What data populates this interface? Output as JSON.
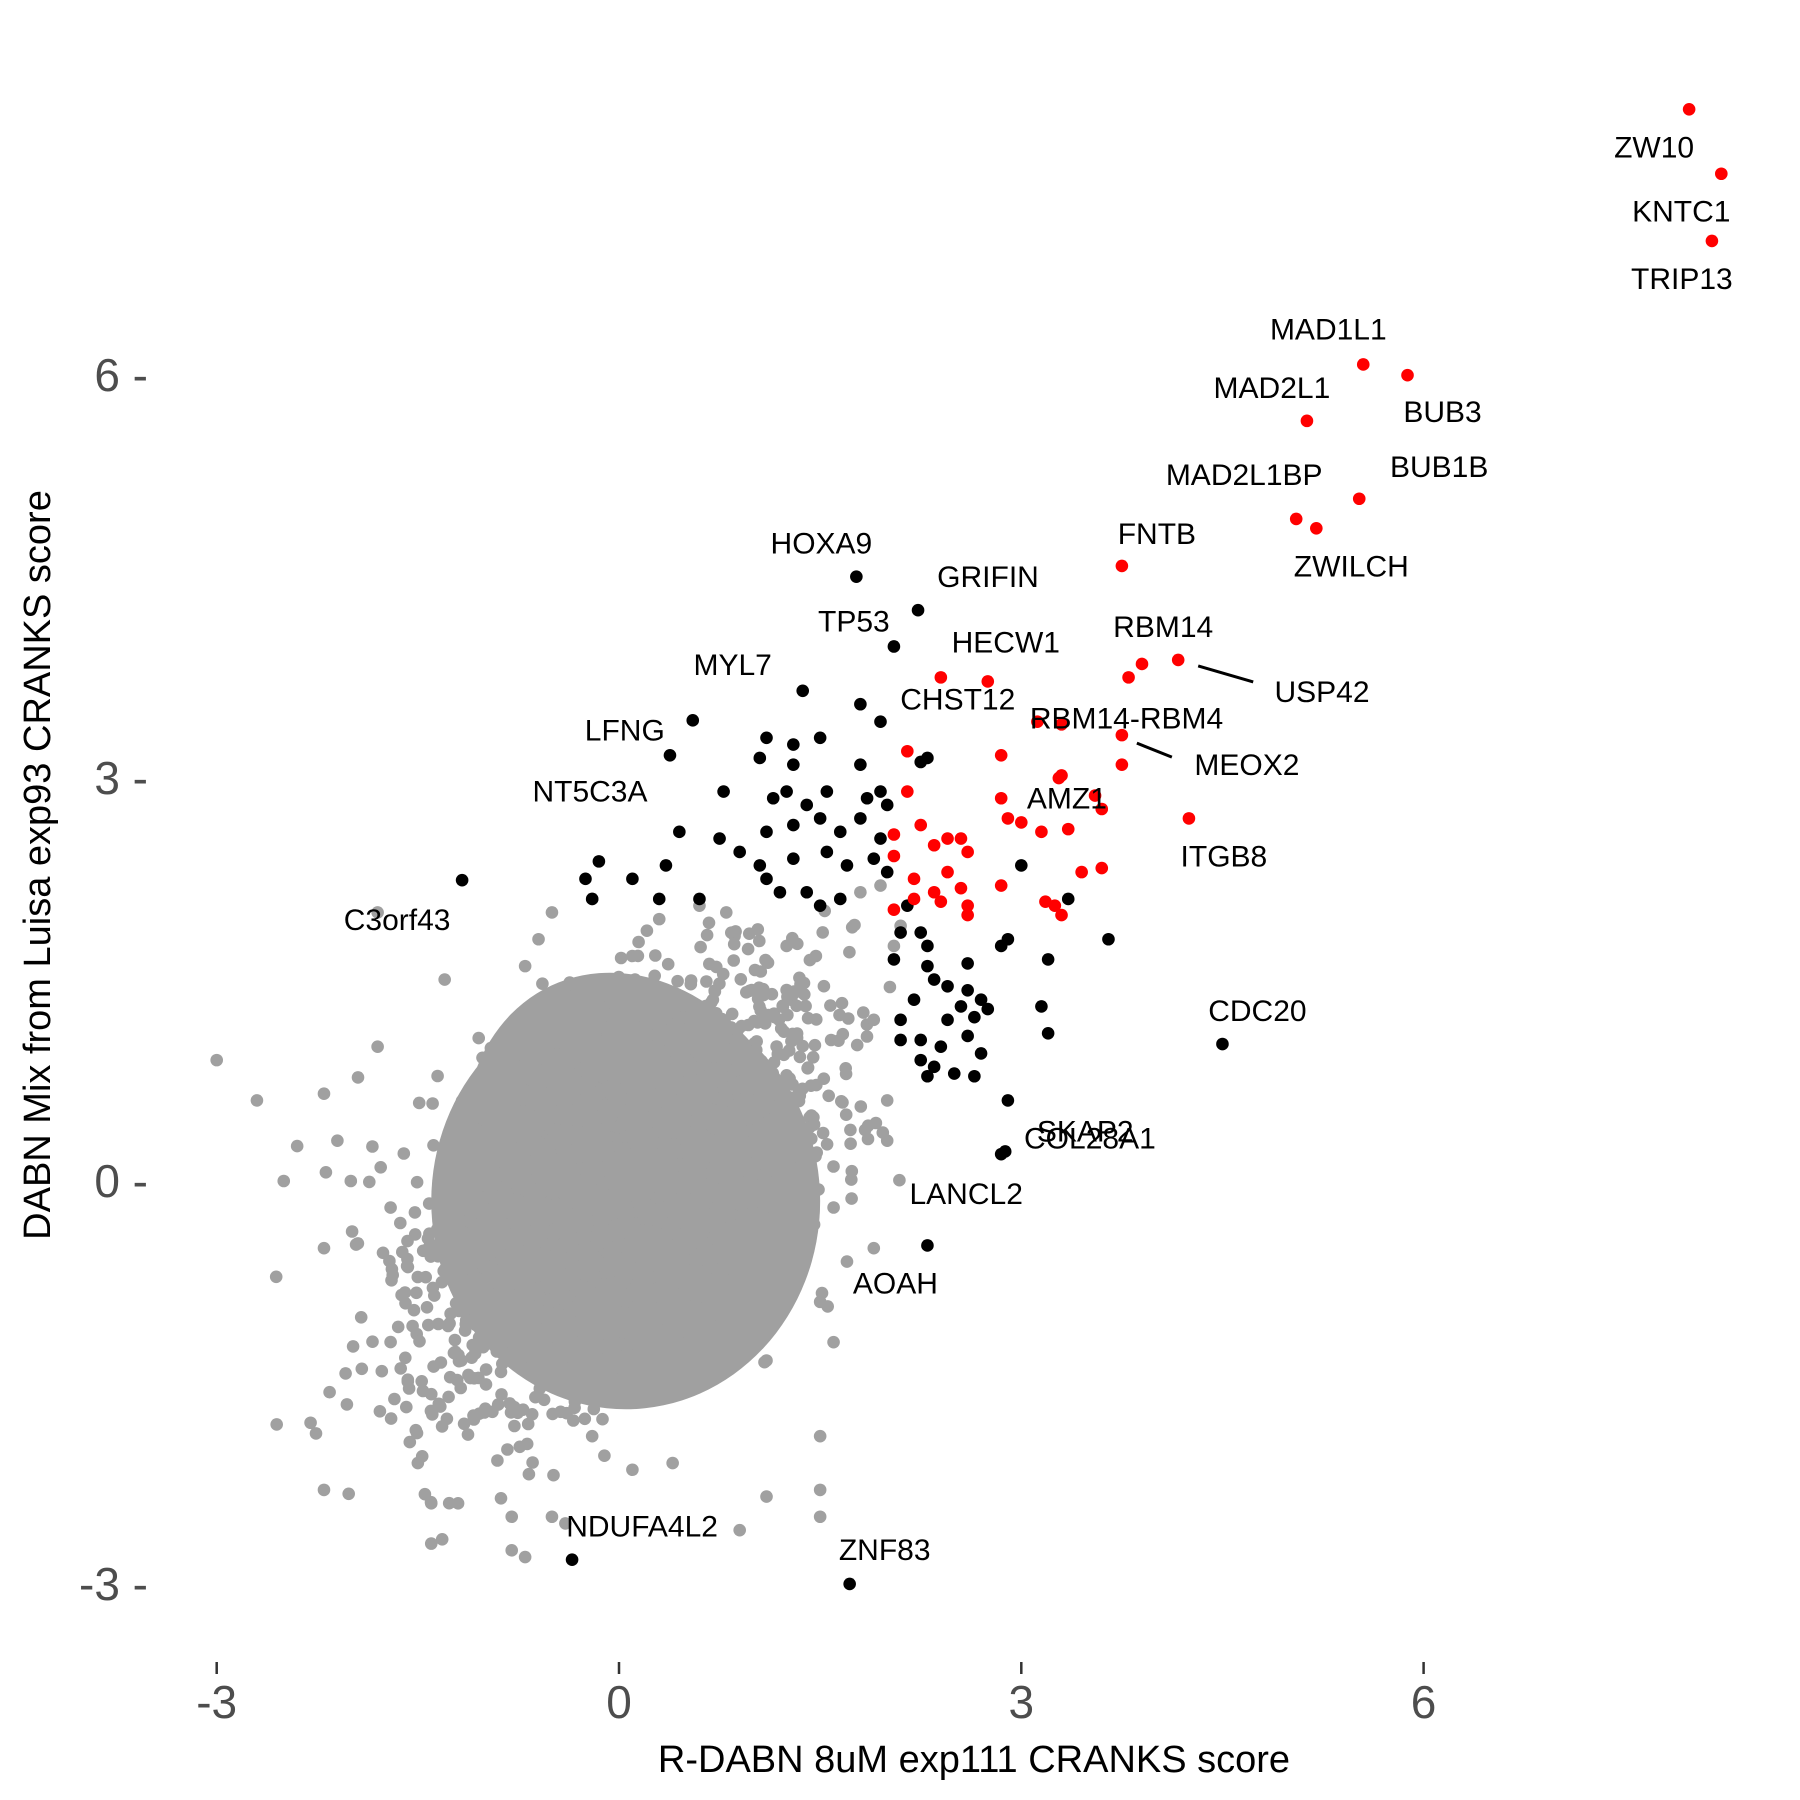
{
  "chart_data": {
    "type": "scatter",
    "title": "",
    "xlabel": "R-DABN 8uM exp111 CRANKS score",
    "ylabel": "DABN Mix from Luisa exp93 CRANKS score",
    "xlim": [
      -3.2,
      8.4
    ],
    "ylim": [
      -3.5,
      8.1
    ],
    "x_ticks": [
      -3,
      0,
      3,
      6
    ],
    "y_ticks": [
      -3,
      0,
      3,
      6
    ],
    "x_tick_labels": [
      "-3",
      "0",
      "3",
      "6"
    ],
    "y_tick_labels": [
      "-3 -",
      "0 -",
      "3 -",
      "6 -"
    ],
    "grid": false,
    "legend": "none",
    "colors": {
      "background": "#A0A0A0",
      "highlight": "#FF0000",
      "significant": "#000000",
      "text": "#000000",
      "tick": "#4D4D4D"
    },
    "background_cloud": {
      "color": "#A0A0A0",
      "description_count_approx": 18000,
      "center": [
        0,
        0
      ],
      "sd": [
        0.55,
        0.6
      ],
      "outliers": [
        [
          -3.0,
          0.9
        ],
        [
          -2.7,
          0.6
        ],
        [
          -2.5,
          0.0
        ],
        [
          -2.4,
          0.26
        ],
        [
          -2.2,
          0.65
        ],
        [
          -2.1,
          0.3
        ],
        [
          -2.0,
          0.0
        ],
        [
          -2.2,
          -0.5
        ],
        [
          -2.3,
          -1.8
        ],
        [
          -2.2,
          -2.3
        ],
        [
          -1.8,
          2.0
        ],
        [
          -1.8,
          1.0
        ],
        [
          -1.3,
          1.5
        ],
        [
          -1.5,
          -2.1
        ],
        [
          -1.4,
          -2.4
        ],
        [
          -1.4,
          -2.7
        ],
        [
          -1.2,
          -2.4
        ],
        [
          -0.8,
          -2.5
        ],
        [
          -0.8,
          -2.75
        ],
        [
          -0.7,
          -2.8
        ],
        [
          -0.5,
          -2.5
        ],
        [
          -0.4,
          -2.55
        ],
        [
          -0.2,
          -1.9
        ],
        [
          0.1,
          -2.15
        ],
        [
          0.4,
          -2.1
        ],
        [
          0.9,
          -2.6
        ],
        [
          1.5,
          -1.9
        ],
        [
          1.5,
          -2.3
        ],
        [
          1.5,
          -2.5
        ],
        [
          1.1,
          -2.35
        ],
        [
          -0.5,
          2.0
        ],
        [
          -0.2,
          2.1
        ],
        [
          0.6,
          2.05
        ],
        [
          1.8,
          2.15
        ],
        [
          1.95,
          2.2
        ],
        [
          2.1,
          1.9
        ],
        [
          1.9,
          1.2
        ],
        [
          2.0,
          0.6
        ],
        [
          2.0,
          0.3
        ],
        [
          1.9,
          -0.5
        ],
        [
          1.7,
          -0.6
        ],
        [
          1.5,
          -0.9
        ],
        [
          1.6,
          -1.2
        ],
        [
          -0.7,
          1.6
        ],
        [
          -0.6,
          1.8
        ],
        [
          0.3,
          1.95
        ],
        [
          0.8,
          2.0
        ],
        [
          1.25,
          1.75
        ],
        [
          2.05,
          1.75
        ]
      ]
    },
    "series": [
      {
        "name": "",
        "color": "#000000",
        "points": [
          {
            "label": "HOXA9",
            "x": 1.77,
            "y": 4.5
          },
          {
            "label": "GRIFIN",
            "x": 2.23,
            "y": 4.25
          },
          {
            "label": "TP53",
            "x": 2.05,
            "y": 3.98
          },
          {
            "label": "MYL7",
            "x": 1.37,
            "y": 3.65
          },
          {
            "label": "",
            "x": 1.8,
            "y": 3.55
          },
          {
            "label": "LFNG",
            "x": 0.55,
            "y": 3.43
          },
          {
            "label": "NT5C3A",
            "x": 0.38,
            "y": 3.17
          },
          {
            "label": "C3orf43",
            "x": -1.17,
            "y": 2.24
          },
          {
            "label": "CDC20",
            "x": 4.5,
            "y": 1.02
          },
          {
            "label": "COL28A1",
            "x": 2.9,
            "y": 0.6
          },
          {
            "label": "SKAP2",
            "x": 2.88,
            "y": 0.22
          },
          {
            "label": "LANCL2",
            "x": 2.85,
            "y": 0.2
          },
          {
            "label": "AOAH",
            "x": 2.3,
            "y": -0.48
          },
          {
            "label": "NDUFA4L2",
            "x": -0.35,
            "y": -2.82
          },
          {
            "label": "ZNF83",
            "x": 1.72,
            "y": -3.0
          },
          {
            "label": "",
            "x": 1.1,
            "y": 3.3
          },
          {
            "label": "",
            "x": 1.3,
            "y": 3.25
          },
          {
            "label": "",
            "x": 1.5,
            "y": 3.3
          },
          {
            "label": "",
            "x": 1.05,
            "y": 3.15
          },
          {
            "label": "",
            "x": 1.3,
            "y": 3.1
          },
          {
            "label": "",
            "x": 1.95,
            "y": 3.42
          },
          {
            "label": "",
            "x": 2.25,
            "y": 3.12
          },
          {
            "label": "",
            "x": 2.3,
            "y": 3.15
          },
          {
            "label": "",
            "x": 1.8,
            "y": 3.1
          },
          {
            "label": "",
            "x": 0.78,
            "y": 2.9
          },
          {
            "label": "",
            "x": 1.15,
            "y": 2.85
          },
          {
            "label": "",
            "x": 1.25,
            "y": 2.9
          },
          {
            "label": "",
            "x": 1.4,
            "y": 2.8
          },
          {
            "label": "",
            "x": 1.55,
            "y": 2.9
          },
          {
            "label": "",
            "x": 1.85,
            "y": 2.85
          },
          {
            "label": "",
            "x": 1.95,
            "y": 2.9
          },
          {
            "label": "",
            "x": 2.0,
            "y": 2.8
          },
          {
            "label": "",
            "x": 0.45,
            "y": 2.6
          },
          {
            "label": "",
            "x": 0.75,
            "y": 2.55
          },
          {
            "label": "",
            "x": 1.1,
            "y": 2.6
          },
          {
            "label": "",
            "x": 1.3,
            "y": 2.65
          },
          {
            "label": "",
            "x": 1.5,
            "y": 2.7
          },
          {
            "label": "",
            "x": 1.65,
            "y": 2.6
          },
          {
            "label": "",
            "x": 1.8,
            "y": 2.7
          },
          {
            "label": "",
            "x": 1.95,
            "y": 2.55
          },
          {
            "label": "",
            "x": 0.9,
            "y": 2.45
          },
          {
            "label": "",
            "x": 1.05,
            "y": 2.35
          },
          {
            "label": "",
            "x": 1.3,
            "y": 2.4
          },
          {
            "label": "",
            "x": 1.55,
            "y": 2.45
          },
          {
            "label": "",
            "x": 1.7,
            "y": 2.35
          },
          {
            "label": "",
            "x": 1.9,
            "y": 2.4
          },
          {
            "label": "",
            "x": 2.0,
            "y": 2.3
          },
          {
            "label": "",
            "x": 0.35,
            "y": 2.35
          },
          {
            "label": "",
            "x": -0.15,
            "y": 2.38
          },
          {
            "label": "",
            "x": -0.25,
            "y": 2.25
          },
          {
            "label": "",
            "x": 0.1,
            "y": 2.25
          },
          {
            "label": "",
            "x": 1.1,
            "y": 2.25
          },
          {
            "label": "",
            "x": 1.2,
            "y": 2.15
          },
          {
            "label": "",
            "x": 1.4,
            "y": 2.15
          },
          {
            "label": "",
            "x": 0.6,
            "y": 2.1
          },
          {
            "label": "",
            "x": 0.3,
            "y": 2.1
          },
          {
            "label": "",
            "x": -0.2,
            "y": 2.1
          },
          {
            "label": "",
            "x": 1.5,
            "y": 2.05
          },
          {
            "label": "",
            "x": 1.65,
            "y": 2.1
          },
          {
            "label": "",
            "x": 2.15,
            "y": 2.05
          },
          {
            "label": "",
            "x": 2.1,
            "y": 1.85
          },
          {
            "label": "",
            "x": 2.25,
            "y": 1.85
          },
          {
            "label": "",
            "x": 2.3,
            "y": 1.75
          },
          {
            "label": "",
            "x": 2.05,
            "y": 1.65
          },
          {
            "label": "",
            "x": 2.3,
            "y": 1.6
          },
          {
            "label": "",
            "x": 2.6,
            "y": 1.62
          },
          {
            "label": "",
            "x": 2.85,
            "y": 1.75
          },
          {
            "label": "",
            "x": 2.9,
            "y": 1.8
          },
          {
            "label": "",
            "x": 3.2,
            "y": 1.65
          },
          {
            "label": "",
            "x": 3.65,
            "y": 1.8
          },
          {
            "label": "",
            "x": 2.35,
            "y": 1.5
          },
          {
            "label": "",
            "x": 2.45,
            "y": 1.45
          },
          {
            "label": "",
            "x": 2.6,
            "y": 1.42
          },
          {
            "label": "",
            "x": 2.55,
            "y": 1.3
          },
          {
            "label": "",
            "x": 2.7,
            "y": 1.35
          },
          {
            "label": "",
            "x": 2.75,
            "y": 1.28
          },
          {
            "label": "",
            "x": 2.2,
            "y": 1.35
          },
          {
            "label": "",
            "x": 2.1,
            "y": 1.2
          },
          {
            "label": "",
            "x": 2.45,
            "y": 1.2
          },
          {
            "label": "",
            "x": 2.65,
            "y": 1.22
          },
          {
            "label": "",
            "x": 2.25,
            "y": 1.05
          },
          {
            "label": "",
            "x": 2.1,
            "y": 1.05
          },
          {
            "label": "",
            "x": 2.4,
            "y": 1.0
          },
          {
            "label": "",
            "x": 2.6,
            "y": 1.08
          },
          {
            "label": "",
            "x": 2.7,
            "y": 0.95
          },
          {
            "label": "",
            "x": 2.25,
            "y": 0.9
          },
          {
            "label": "",
            "x": 2.35,
            "y": 0.85
          },
          {
            "label": "",
            "x": 2.3,
            "y": 0.78
          },
          {
            "label": "",
            "x": 2.5,
            "y": 0.8
          },
          {
            "label": "",
            "x": 2.65,
            "y": 0.78
          },
          {
            "label": "",
            "x": 3.2,
            "y": 1.1
          },
          {
            "label": "",
            "x": 3.15,
            "y": 1.3
          },
          {
            "label": "",
            "x": 3.35,
            "y": 2.1
          },
          {
            "label": "",
            "x": 3.0,
            "y": 2.35
          }
        ]
      },
      {
        "name": "",
        "color": "#FF0000",
        "points": [
          {
            "label": "ZW10",
            "x": 7.98,
            "y": 7.98
          },
          {
            "label": "KNTC1",
            "x": 8.22,
            "y": 7.5
          },
          {
            "label": "TRIP13",
            "x": 8.15,
            "y": 7.0
          },
          {
            "label": "MAD1L1",
            "x": 5.55,
            "y": 6.08
          },
          {
            "label": "BUB3",
            "x": 5.88,
            "y": 6.0
          },
          {
            "label": "MAD2L1",
            "x": 5.13,
            "y": 5.66
          },
          {
            "label": "BUB1B",
            "x": 5.52,
            "y": 5.08
          },
          {
            "label": "MAD2L1BP",
            "x": 5.05,
            "y": 4.93
          },
          {
            "label": "ZWILCH",
            "x": 5.2,
            "y": 4.86
          },
          {
            "label": "FNTB",
            "x": 3.75,
            "y": 4.58
          },
          {
            "label": "RBM14",
            "x": 4.17,
            "y": 3.88
          },
          {
            "label": "USP42",
            "x": 3.9,
            "y": 3.85
          },
          {
            "label": "",
            "x": 3.8,
            "y": 3.75
          },
          {
            "label": "HECW1",
            "x": 2.4,
            "y": 3.75
          },
          {
            "label": "CHST12",
            "x": 2.75,
            "y": 3.72
          },
          {
            "label": "RBM14-RBM4",
            "x": 3.3,
            "y": 3.4
          },
          {
            "label": "",
            "x": 3.12,
            "y": 3.42
          },
          {
            "label": "MEOX2",
            "x": 3.75,
            "y": 3.32
          },
          {
            "label": "AMZ1",
            "x": 3.75,
            "y": 3.1
          },
          {
            "label": "ITGB8",
            "x": 4.25,
            "y": 2.7
          },
          {
            "label": "",
            "x": 2.15,
            "y": 3.2
          },
          {
            "label": "",
            "x": 2.85,
            "y": 3.17
          },
          {
            "label": "",
            "x": 3.3,
            "y": 3.02
          },
          {
            "label": "",
            "x": 3.28,
            "y": 3.0
          },
          {
            "label": "",
            "x": 2.15,
            "y": 2.9
          },
          {
            "label": "",
            "x": 2.85,
            "y": 2.85
          },
          {
            "label": "",
            "x": 3.55,
            "y": 2.87
          },
          {
            "label": "",
            "x": 3.6,
            "y": 2.77
          },
          {
            "label": "",
            "x": 2.9,
            "y": 2.7
          },
          {
            "label": "",
            "x": 3.0,
            "y": 2.67
          },
          {
            "label": "",
            "x": 3.15,
            "y": 2.6
          },
          {
            "label": "",
            "x": 3.35,
            "y": 2.62
          },
          {
            "label": "",
            "x": 2.25,
            "y": 2.65
          },
          {
            "label": "",
            "x": 2.05,
            "y": 2.58
          },
          {
            "label": "",
            "x": 2.45,
            "y": 2.55
          },
          {
            "label": "",
            "x": 2.55,
            "y": 2.55
          },
          {
            "label": "",
            "x": 2.35,
            "y": 2.5
          },
          {
            "label": "",
            "x": 2.6,
            "y": 2.45
          },
          {
            "label": "",
            "x": 2.05,
            "y": 2.42
          },
          {
            "label": "",
            "x": 2.45,
            "y": 2.3
          },
          {
            "label": "",
            "x": 3.45,
            "y": 2.3
          },
          {
            "label": "",
            "x": 3.6,
            "y": 2.33
          },
          {
            "label": "",
            "x": 2.2,
            "y": 2.25
          },
          {
            "label": "",
            "x": 2.85,
            "y": 2.2
          },
          {
            "label": "",
            "x": 2.35,
            "y": 2.15
          },
          {
            "label": "",
            "x": 2.55,
            "y": 2.18
          },
          {
            "label": "",
            "x": 2.4,
            "y": 2.08
          },
          {
            "label": "",
            "x": 2.6,
            "y": 2.05
          },
          {
            "label": "",
            "x": 3.18,
            "y": 2.08
          },
          {
            "label": "",
            "x": 3.25,
            "y": 2.05
          },
          {
            "label": "",
            "x": 2.05,
            "y": 2.02
          },
          {
            "label": "",
            "x": 2.6,
            "y": 1.98
          },
          {
            "label": "",
            "x": 3.3,
            "y": 1.98
          },
          {
            "label": "",
            "x": 2.2,
            "y": 2.1
          }
        ]
      }
    ]
  }
}
